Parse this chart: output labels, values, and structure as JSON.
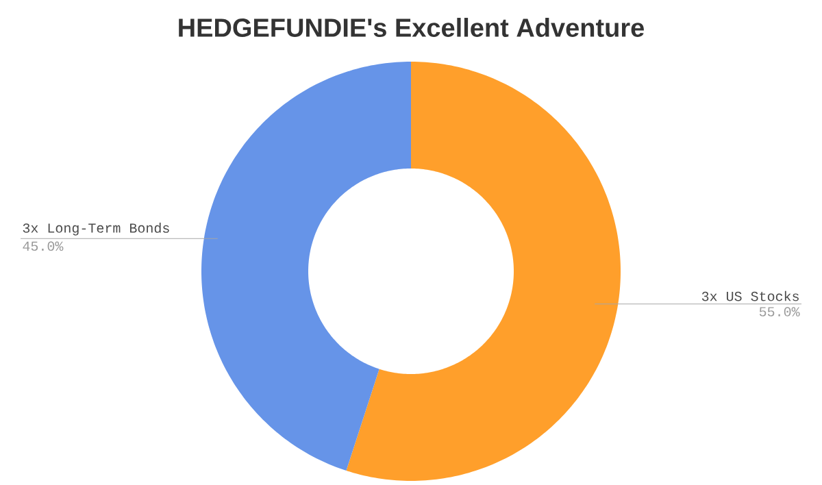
{
  "chart_data": {
    "type": "donut",
    "title": "HEDGEFUNDIE's Excellent Adventure",
    "categories": [
      "3x US Stocks",
      "3x Long-Term Bonds"
    ],
    "values": [
      55,
      45
    ],
    "colors": [
      "#ff9f2b",
      "#6694e8"
    ],
    "value_labels": [
      "55.0%",
      "45.0%"
    ]
  }
}
